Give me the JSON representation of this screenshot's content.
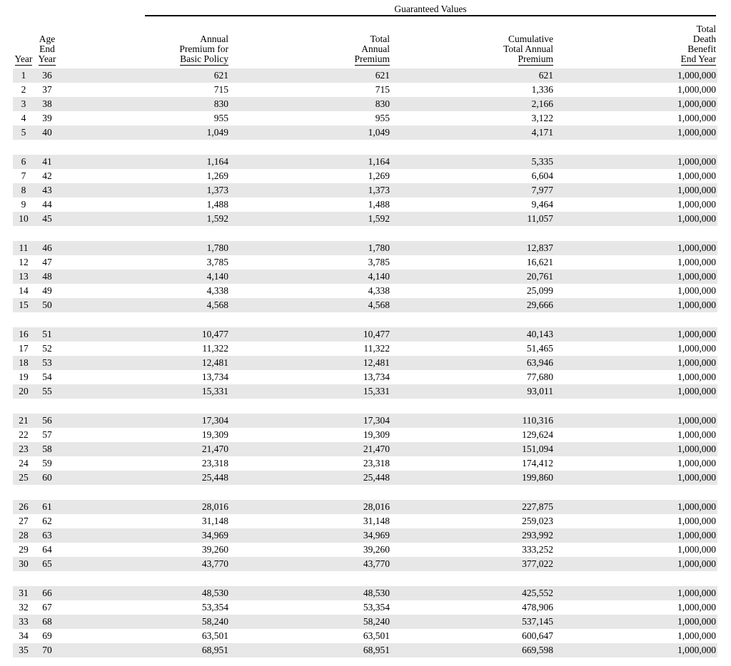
{
  "page": {
    "background": "#ffffff",
    "text_color": "#000000",
    "stripe_color": "#e7e7e7"
  },
  "table": {
    "spanner": "Guaranteed Values",
    "columns": [
      {
        "id": "year",
        "lines": [
          "Year"
        ]
      },
      {
        "id": "age-end-year",
        "lines": [
          "Age",
          "End",
          "Year"
        ]
      },
      {
        "id": "annual-premium-basic-policy",
        "lines": [
          "Annual",
          "Premium for",
          "Basic Policy"
        ]
      },
      {
        "id": "total-annual-premium",
        "lines": [
          "Total",
          "Annual",
          "Premium"
        ]
      },
      {
        "id": "cumulative-total-annual-premium",
        "lines": [
          "Cumulative",
          "Total Annual",
          "Premium"
        ]
      },
      {
        "id": "total-death-benefit-end-year",
        "lines": [
          "Total",
          "Death",
          "Benefit",
          "End Year"
        ]
      }
    ],
    "groups": [
      {
        "rows": [
          [
            "1",
            "36",
            "621",
            "621",
            "621",
            "1,000,000"
          ],
          [
            "2",
            "37",
            "715",
            "715",
            "1,336",
            "1,000,000"
          ],
          [
            "3",
            "38",
            "830",
            "830",
            "2,166",
            "1,000,000"
          ],
          [
            "4",
            "39",
            "955",
            "955",
            "3,122",
            "1,000,000"
          ],
          [
            "5",
            "40",
            "1,049",
            "1,049",
            "4,171",
            "1,000,000"
          ]
        ]
      },
      {
        "rows": [
          [
            "6",
            "41",
            "1,164",
            "1,164",
            "5,335",
            "1,000,000"
          ],
          [
            "7",
            "42",
            "1,269",
            "1,269",
            "6,604",
            "1,000,000"
          ],
          [
            "8",
            "43",
            "1,373",
            "1,373",
            "7,977",
            "1,000,000"
          ],
          [
            "9",
            "44",
            "1,488",
            "1,488",
            "9,464",
            "1,000,000"
          ],
          [
            "10",
            "45",
            "1,592",
            "1,592",
            "11,057",
            "1,000,000"
          ]
        ]
      },
      {
        "rows": [
          [
            "11",
            "46",
            "1,780",
            "1,780",
            "12,837",
            "1,000,000"
          ],
          [
            "12",
            "47",
            "3,785",
            "3,785",
            "16,621",
            "1,000,000"
          ],
          [
            "13",
            "48",
            "4,140",
            "4,140",
            "20,761",
            "1,000,000"
          ],
          [
            "14",
            "49",
            "4,338",
            "4,338",
            "25,099",
            "1,000,000"
          ],
          [
            "15",
            "50",
            "4,568",
            "4,568",
            "29,666",
            "1,000,000"
          ]
        ]
      },
      {
        "rows": [
          [
            "16",
            "51",
            "10,477",
            "10,477",
            "40,143",
            "1,000,000"
          ],
          [
            "17",
            "52",
            "11,322",
            "11,322",
            "51,465",
            "1,000,000"
          ],
          [
            "18",
            "53",
            "12,481",
            "12,481",
            "63,946",
            "1,000,000"
          ],
          [
            "19",
            "54",
            "13,734",
            "13,734",
            "77,680",
            "1,000,000"
          ],
          [
            "20",
            "55",
            "15,331",
            "15,331",
            "93,011",
            "1,000,000"
          ]
        ]
      },
      {
        "rows": [
          [
            "21",
            "56",
            "17,304",
            "17,304",
            "110,316",
            "1,000,000"
          ],
          [
            "22",
            "57",
            "19,309",
            "19,309",
            "129,624",
            "1,000,000"
          ],
          [
            "23",
            "58",
            "21,470",
            "21,470",
            "151,094",
            "1,000,000"
          ],
          [
            "24",
            "59",
            "23,318",
            "23,318",
            "174,412",
            "1,000,000"
          ],
          [
            "25",
            "60",
            "25,448",
            "25,448",
            "199,860",
            "1,000,000"
          ]
        ]
      },
      {
        "rows": [
          [
            "26",
            "61",
            "28,016",
            "28,016",
            "227,875",
            "1,000,000"
          ],
          [
            "27",
            "62",
            "31,148",
            "31,148",
            "259,023",
            "1,000,000"
          ],
          [
            "28",
            "63",
            "34,969",
            "34,969",
            "293,992",
            "1,000,000"
          ],
          [
            "29",
            "64",
            "39,260",
            "39,260",
            "333,252",
            "1,000,000"
          ],
          [
            "30",
            "65",
            "43,770",
            "43,770",
            "377,022",
            "1,000,000"
          ]
        ]
      },
      {
        "rows": [
          [
            "31",
            "66",
            "48,530",
            "48,530",
            "425,552",
            "1,000,000"
          ],
          [
            "32",
            "67",
            "53,354",
            "53,354",
            "478,906",
            "1,000,000"
          ],
          [
            "33",
            "68",
            "58,240",
            "58,240",
            "537,145",
            "1,000,000"
          ],
          [
            "34",
            "69",
            "63,501",
            "63,501",
            "600,647",
            "1,000,000"
          ],
          [
            "35",
            "70",
            "68,951",
            "68,951",
            "669,598",
            "1,000,000"
          ]
        ]
      }
    ]
  }
}
